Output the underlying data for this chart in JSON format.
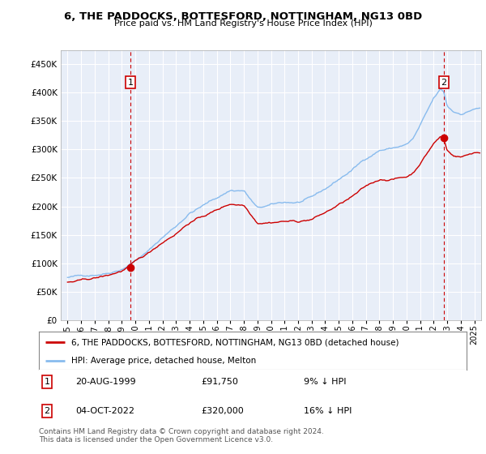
{
  "title": "6, THE PADDOCKS, BOTTESFORD, NOTTINGHAM, NG13 0BD",
  "subtitle": "Price paid vs. HM Land Registry's House Price Index (HPI)",
  "ytick_values": [
    0,
    50000,
    100000,
    150000,
    200000,
    250000,
    300000,
    350000,
    400000,
    450000
  ],
  "ylim": [
    0,
    475000
  ],
  "xlim_start": 1994.5,
  "xlim_end": 2025.5,
  "hpi_color": "#88bbee",
  "price_color": "#cc0000",
  "chart_bg_color": "#e8eef8",
  "grid_color": "#ffffff",
  "bg_color": "#ffffff",
  "sale1_year": 1999.64,
  "sale1_value": 91750,
  "sale1_date": "20-AUG-1999",
  "sale1_price": "£91,750",
  "sale1_hpi": "9% ↓ HPI",
  "sale2_year": 2022.76,
  "sale2_value": 320000,
  "sale2_date": "04-OCT-2022",
  "sale2_price": "£320,000",
  "sale2_hpi": "16% ↓ HPI",
  "label1": "6, THE PADDOCKS, BOTTESFORD, NOTTINGHAM, NG13 0BD (detached house)",
  "label2": "HPI: Average price, detached house, Melton",
  "footer": "Contains HM Land Registry data © Crown copyright and database right 2024.\nThis data is licensed under the Open Government Licence v3.0.",
  "number_box_edgecolor": "#cc0000",
  "number_box_facecolor": "#ffffff",
  "number_text_color": "#000000",
  "vline_color": "#cc0000",
  "marker_color": "#cc0000"
}
